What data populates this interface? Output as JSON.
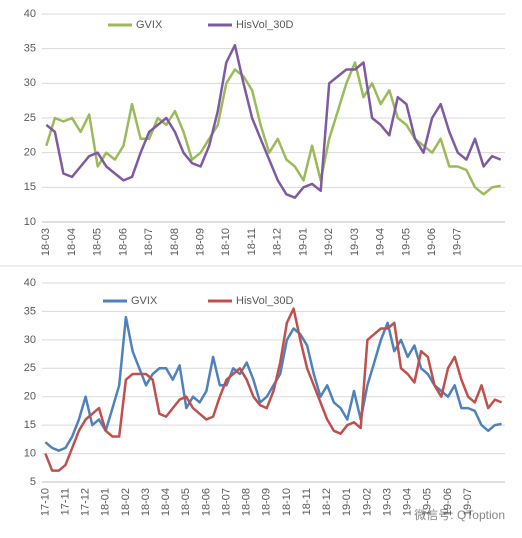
{
  "chart_data": [
    {
      "type": "line",
      "categories": [
        "18-03",
        null,
        null,
        "18-04",
        null,
        null,
        "18-05",
        null,
        null,
        "18-06",
        null,
        null,
        "18-07",
        null,
        null,
        "18-08",
        null,
        null,
        "18-09",
        null,
        null,
        "18-10",
        null,
        null,
        "18-11",
        null,
        null,
        "18-12",
        null,
        null,
        "19-01",
        null,
        null,
        "19-02",
        null,
        null,
        "19-03",
        null,
        null,
        "19-04",
        null,
        null,
        "19-05",
        null,
        null,
        "19-06",
        null,
        null,
        "19-07",
        null,
        null,
        null,
        null,
        null
      ],
      "series": [
        {
          "name": "GVIX",
          "color": "#9bbb59",
          "values": [
            21,
            25,
            24.5,
            25,
            23,
            25.5,
            18,
            20,
            19,
            21,
            27,
            22,
            22,
            25,
            24,
            26,
            23,
            19,
            20,
            22,
            24,
            30,
            32,
            31,
            29,
            24,
            20,
            22,
            19,
            18,
            16,
            21,
            16,
            22,
            26,
            30,
            33,
            28,
            30,
            27,
            29,
            25,
            24,
            22,
            21,
            20,
            22,
            18,
            18,
            17.5,
            15,
            14,
            15,
            15.2
          ]
        },
        {
          "name": "HisVol_30D",
          "color": "#7f5aa2",
          "values": [
            24,
            23,
            17,
            16.5,
            18,
            19.5,
            20,
            18,
            17,
            16,
            16.5,
            20,
            23,
            24,
            25,
            23,
            20,
            18.5,
            18,
            21,
            26,
            33,
            35.5,
            30,
            25,
            22,
            19,
            16,
            14,
            13.5,
            15,
            15.5,
            14.5,
            30,
            31,
            32,
            32,
            33,
            25,
            24,
            22.5,
            28,
            27,
            22,
            20,
            25,
            27,
            23,
            20,
            19,
            22,
            18,
            19.5,
            19
          ]
        }
      ],
      "ylim": [
        10,
        40
      ],
      "yticks": [
        10,
        15,
        20,
        25,
        30,
        35,
        40
      ],
      "grid": true
    },
    {
      "type": "line",
      "categories": [
        "17-10",
        null,
        null,
        "17-11",
        null,
        null,
        "17-12",
        null,
        null,
        "18-01",
        null,
        null,
        "18-02",
        null,
        null,
        "18-03",
        null,
        null,
        "18-04",
        null,
        null,
        "18-05",
        null,
        null,
        "18-06",
        null,
        null,
        "18-07",
        null,
        null,
        "18-08",
        null,
        null,
        "18-09",
        null,
        null,
        "18-10",
        null,
        null,
        "18-11",
        null,
        null,
        "18-12",
        null,
        null,
        "19-01",
        null,
        null,
        "19-02",
        null,
        null,
        "19-03",
        null,
        null,
        "19-04",
        null,
        null,
        "19-05",
        null,
        null,
        "19-06",
        null,
        null,
        "19-07",
        null,
        null,
        null,
        null,
        null
      ],
      "series": [
        {
          "name": "GVIX",
          "color": "#4f81bd",
          "values": [
            12,
            11,
            10.5,
            11,
            13,
            16,
            20,
            15,
            16,
            14,
            18,
            22,
            34,
            28,
            25,
            22,
            24,
            25,
            25,
            23,
            25.5,
            18,
            20,
            19,
            21,
            27,
            22,
            22,
            25,
            24,
            26,
            23,
            19,
            20,
            22,
            24,
            30,
            32,
            31,
            29,
            24,
            20,
            22,
            19,
            18,
            16,
            21,
            16,
            22,
            26,
            30,
            33,
            28,
            30,
            27,
            29,
            25,
            24,
            22,
            21,
            20,
            22,
            18,
            18,
            17.5,
            15,
            14,
            15,
            15.2
          ]
        },
        {
          "name": "HisVol_30D",
          "color": "#c0504d",
          "values": [
            10,
            7,
            7,
            8,
            11,
            14,
            16,
            17,
            18,
            14,
            13,
            13,
            23,
            24,
            24,
            24,
            23,
            17,
            16.5,
            18,
            19.5,
            20,
            18,
            17,
            16,
            16.5,
            20,
            23,
            24,
            25,
            23,
            20,
            18.5,
            18,
            21,
            26,
            33,
            35.5,
            30,
            25,
            22,
            19,
            16,
            14,
            13.5,
            15,
            15.5,
            14.5,
            30,
            31,
            32,
            32,
            33,
            25,
            24,
            22.5,
            28,
            27,
            22,
            20,
            25,
            27,
            23,
            20,
            19,
            22,
            18,
            19.5,
            19
          ]
        }
      ],
      "ylim": [
        5,
        40
      ],
      "yticks": [
        5,
        10,
        15,
        20,
        25,
        30,
        35,
        40
      ],
      "grid": true
    }
  ],
  "watermark": "微信号: QToption"
}
